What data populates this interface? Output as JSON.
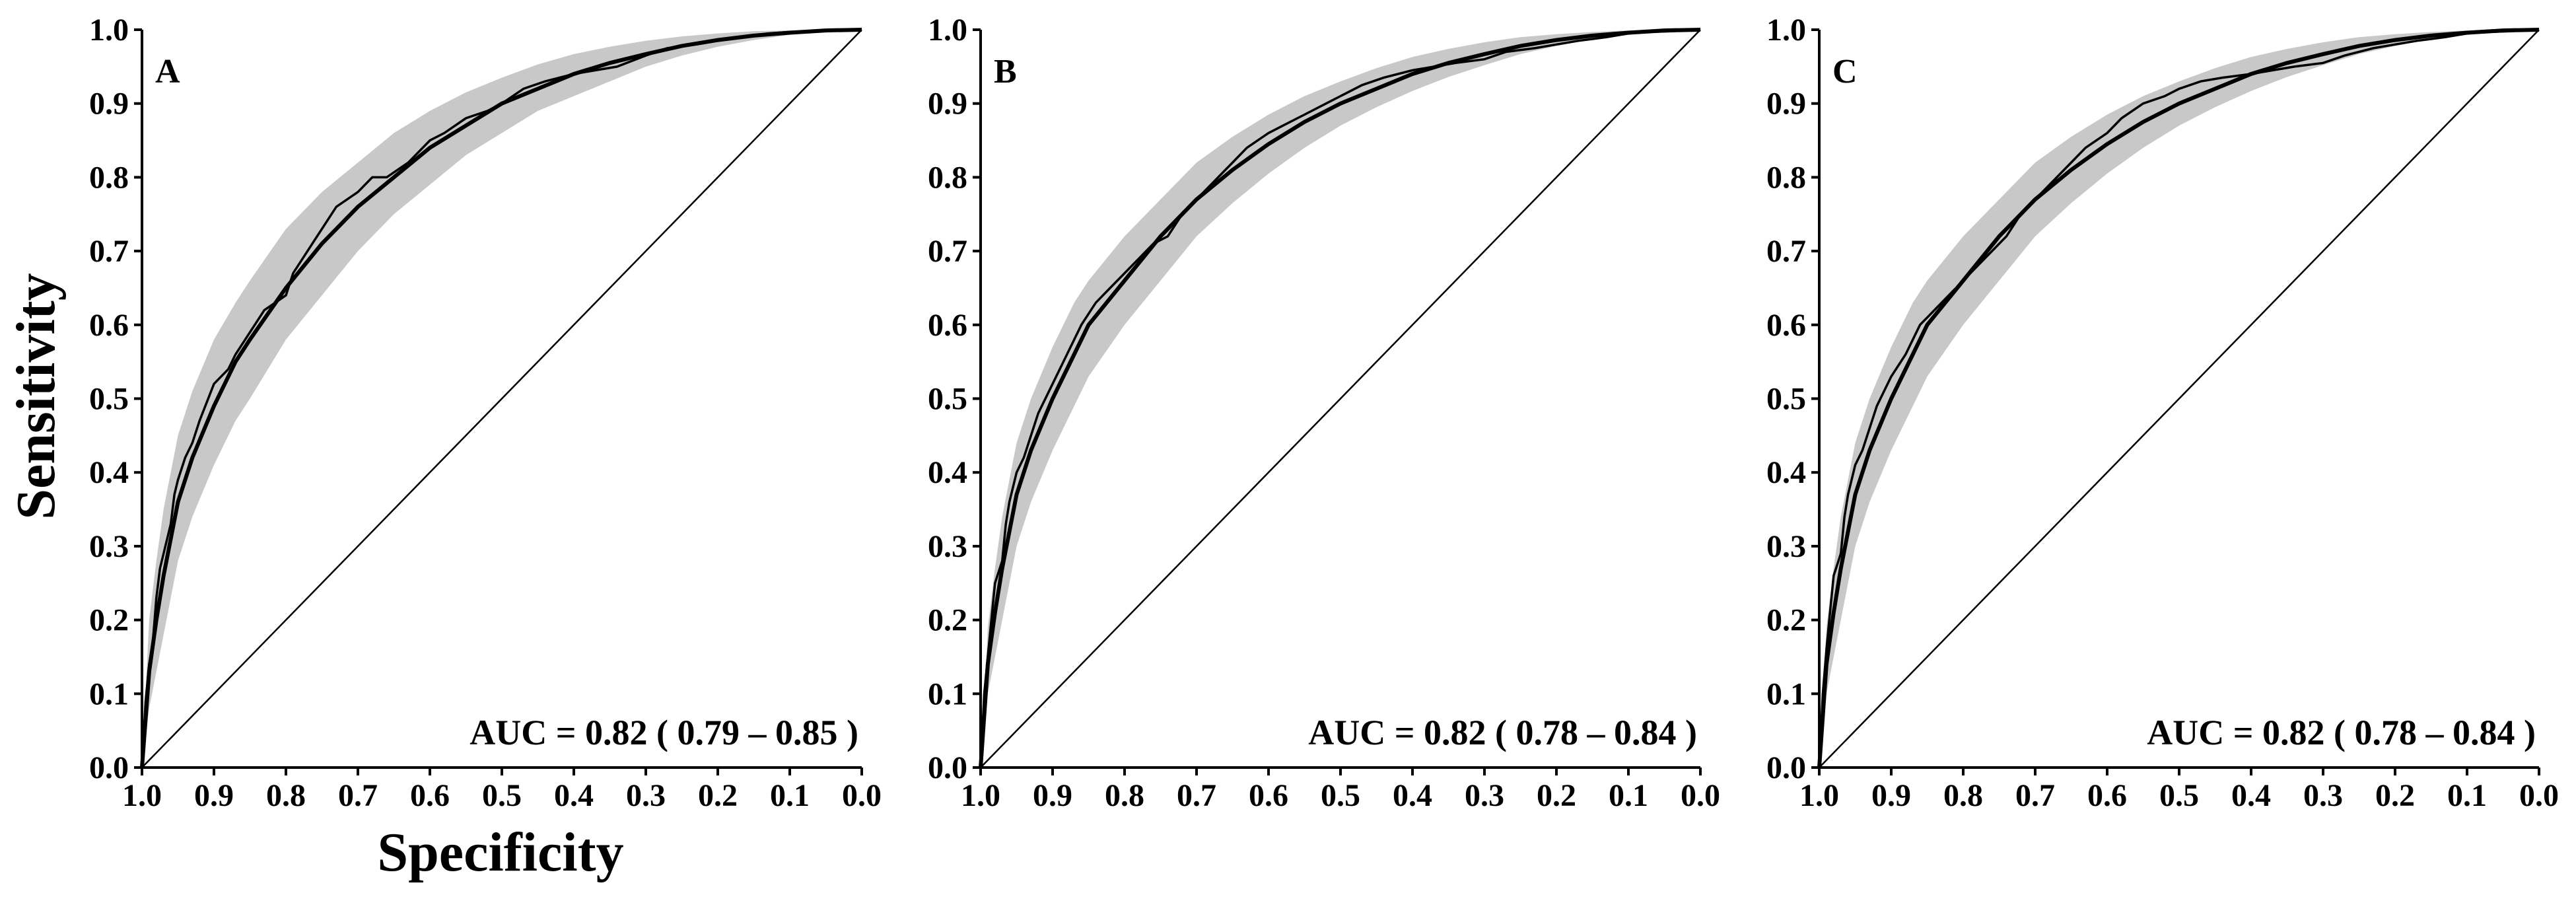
{
  "chart_data": [
    {
      "type": "line",
      "panel_label": "A",
      "xlabel": "Specificity",
      "ylabel": "Sensitivity",
      "xlim": [
        1.0,
        0.0
      ],
      "ylim": [
        0.0,
        1.0
      ],
      "xticks": [
        "1.0",
        "0.9",
        "0.8",
        "0.7",
        "0.6",
        "0.5",
        "0.4",
        "0.3",
        "0.2",
        "0.1",
        "0.0"
      ],
      "yticks": [
        "0.0",
        "0.1",
        "0.2",
        "0.3",
        "0.4",
        "0.5",
        "0.6",
        "0.7",
        "0.8",
        "0.9",
        "1.0"
      ],
      "annotation": "AUC = 0.82 ( 0.79 – 0.85 )",
      "auc": 0.82,
      "grid": false,
      "series": [
        {
          "kind": "smoothed",
          "x": [
            1.0,
            0.99,
            0.98,
            0.97,
            0.96,
            0.95,
            0.93,
            0.9,
            0.87,
            0.85,
            0.8,
            0.75,
            0.7,
            0.65,
            0.6,
            0.55,
            0.5,
            0.45,
            0.4,
            0.35,
            0.3,
            0.25,
            0.2,
            0.15,
            0.1,
            0.05,
            0.0
          ],
          "y": [
            0.0,
            0.13,
            0.2,
            0.26,
            0.31,
            0.36,
            0.42,
            0.49,
            0.55,
            0.58,
            0.65,
            0.71,
            0.76,
            0.8,
            0.84,
            0.87,
            0.9,
            0.92,
            0.94,
            0.955,
            0.967,
            0.978,
            0.986,
            0.992,
            0.996,
            0.999,
            1.0
          ]
        },
        {
          "kind": "empirical",
          "x": [
            1.0,
            0.995,
            0.99,
            0.985,
            0.98,
            0.975,
            0.97,
            0.96,
            0.955,
            0.95,
            0.94,
            0.93,
            0.92,
            0.9,
            0.88,
            0.87,
            0.85,
            0.83,
            0.8,
            0.79,
            0.77,
            0.75,
            0.73,
            0.7,
            0.68,
            0.66,
            0.63,
            0.6,
            0.58,
            0.55,
            0.52,
            0.5,
            0.47,
            0.44,
            0.4,
            0.37,
            0.34,
            0.3,
            0.27,
            0.23,
            0.2,
            0.17,
            0.13,
            0.1,
            0.07,
            0.04,
            0.0
          ],
          "y": [
            0.0,
            0.09,
            0.14,
            0.17,
            0.23,
            0.27,
            0.29,
            0.33,
            0.37,
            0.39,
            0.42,
            0.44,
            0.47,
            0.52,
            0.54,
            0.56,
            0.59,
            0.62,
            0.64,
            0.67,
            0.7,
            0.73,
            0.76,
            0.78,
            0.8,
            0.8,
            0.82,
            0.85,
            0.86,
            0.88,
            0.89,
            0.9,
            0.92,
            0.93,
            0.94,
            0.945,
            0.95,
            0.965,
            0.975,
            0.98,
            0.985,
            0.99,
            0.995,
            0.997,
            0.998,
            1.0,
            1.0
          ]
        }
      ],
      "ci_band": {
        "x": [
          1.0,
          0.99,
          0.98,
          0.97,
          0.96,
          0.95,
          0.93,
          0.9,
          0.87,
          0.85,
          0.8,
          0.75,
          0.7,
          0.65,
          0.6,
          0.55,
          0.5,
          0.45,
          0.4,
          0.35,
          0.3,
          0.25,
          0.2,
          0.15,
          0.1,
          0.05,
          0.0
        ],
        "upper": [
          0.0,
          0.2,
          0.28,
          0.35,
          0.4,
          0.45,
          0.51,
          0.58,
          0.63,
          0.66,
          0.73,
          0.78,
          0.82,
          0.86,
          0.89,
          0.915,
          0.935,
          0.953,
          0.967,
          0.977,
          0.985,
          0.991,
          0.995,
          0.998,
          0.999,
          1.0,
          1.0
        ],
        "lower": [
          0.0,
          0.08,
          0.13,
          0.18,
          0.23,
          0.28,
          0.34,
          0.41,
          0.47,
          0.5,
          0.58,
          0.64,
          0.7,
          0.75,
          0.79,
          0.83,
          0.86,
          0.89,
          0.91,
          0.93,
          0.95,
          0.965,
          0.977,
          0.986,
          0.993,
          0.998,
          1.0
        ]
      }
    },
    {
      "type": "line",
      "panel_label": "B",
      "xlabel": "",
      "ylabel": "",
      "xlim": [
        1.0,
        0.0
      ],
      "ylim": [
        0.0,
        1.0
      ],
      "xticks": [
        "1.0",
        "0.9",
        "0.8",
        "0.7",
        "0.6",
        "0.5",
        "0.4",
        "0.3",
        "0.2",
        "0.1",
        "0.0"
      ],
      "yticks": [
        "0.0",
        "0.1",
        "0.2",
        "0.3",
        "0.4",
        "0.5",
        "0.6",
        "0.7",
        "0.8",
        "0.9",
        "1.0"
      ],
      "annotation": "AUC = 0.82 ( 0.78 – 0.84 )",
      "auc": 0.82,
      "grid": false,
      "series": [
        {
          "kind": "smoothed",
          "x": [
            1.0,
            0.99,
            0.98,
            0.97,
            0.96,
            0.95,
            0.93,
            0.9,
            0.87,
            0.85,
            0.8,
            0.75,
            0.7,
            0.65,
            0.6,
            0.55,
            0.5,
            0.45,
            0.4,
            0.35,
            0.3,
            0.25,
            0.2,
            0.15,
            0.1,
            0.05,
            0.0
          ],
          "y": [
            0.0,
            0.14,
            0.21,
            0.27,
            0.32,
            0.37,
            0.43,
            0.5,
            0.56,
            0.6,
            0.66,
            0.72,
            0.77,
            0.81,
            0.845,
            0.875,
            0.9,
            0.92,
            0.94,
            0.955,
            0.967,
            0.978,
            0.986,
            0.992,
            0.996,
            0.999,
            1.0
          ]
        },
        {
          "kind": "empirical",
          "x": [
            1.0,
            0.995,
            0.99,
            0.985,
            0.98,
            0.97,
            0.965,
            0.96,
            0.95,
            0.94,
            0.93,
            0.92,
            0.9,
            0.88,
            0.86,
            0.84,
            0.82,
            0.8,
            0.78,
            0.76,
            0.74,
            0.72,
            0.7,
            0.68,
            0.65,
            0.63,
            0.6,
            0.58,
            0.55,
            0.52,
            0.5,
            0.47,
            0.44,
            0.4,
            0.37,
            0.34,
            0.3,
            0.27,
            0.23,
            0.2,
            0.17,
            0.13,
            0.1,
            0.07,
            0.04,
            0.0
          ],
          "y": [
            0.0,
            0.1,
            0.15,
            0.2,
            0.25,
            0.28,
            0.33,
            0.36,
            0.4,
            0.42,
            0.45,
            0.48,
            0.52,
            0.56,
            0.6,
            0.63,
            0.65,
            0.67,
            0.69,
            0.71,
            0.72,
            0.75,
            0.77,
            0.79,
            0.82,
            0.84,
            0.86,
            0.87,
            0.885,
            0.9,
            0.91,
            0.925,
            0.935,
            0.945,
            0.95,
            0.955,
            0.96,
            0.97,
            0.975,
            0.98,
            0.985,
            0.99,
            0.995,
            0.997,
            0.998,
            1.0
          ]
        }
      ],
      "ci_band": {
        "x": [
          1.0,
          0.99,
          0.98,
          0.97,
          0.96,
          0.95,
          0.93,
          0.9,
          0.87,
          0.85,
          0.8,
          0.75,
          0.7,
          0.65,
          0.6,
          0.55,
          0.5,
          0.45,
          0.4,
          0.35,
          0.3,
          0.25,
          0.2,
          0.15,
          0.1,
          0.05,
          0.0
        ],
        "upper": [
          0.0,
          0.19,
          0.27,
          0.34,
          0.39,
          0.44,
          0.5,
          0.57,
          0.63,
          0.66,
          0.72,
          0.77,
          0.82,
          0.855,
          0.885,
          0.91,
          0.93,
          0.948,
          0.963,
          0.974,
          0.983,
          0.99,
          0.994,
          0.997,
          0.999,
          1.0,
          1.0
        ],
        "lower": [
          0.0,
          0.1,
          0.15,
          0.2,
          0.25,
          0.3,
          0.36,
          0.43,
          0.49,
          0.53,
          0.6,
          0.66,
          0.72,
          0.765,
          0.805,
          0.84,
          0.87,
          0.895,
          0.917,
          0.936,
          0.952,
          0.967,
          0.978,
          0.987,
          0.993,
          0.998,
          1.0
        ]
      }
    },
    {
      "type": "line",
      "panel_label": "C",
      "xlabel": "",
      "ylabel": "",
      "xlim": [
        1.0,
        0.0
      ],
      "ylim": [
        0.0,
        1.0
      ],
      "xticks": [
        "1.0",
        "0.9",
        "0.8",
        "0.7",
        "0.6",
        "0.5",
        "0.4",
        "0.3",
        "0.2",
        "0.1",
        "0.0"
      ],
      "yticks": [
        "0.0",
        "0.1",
        "0.2",
        "0.3",
        "0.4",
        "0.5",
        "0.6",
        "0.7",
        "0.8",
        "0.9",
        "1.0"
      ],
      "annotation": "AUC = 0.82 ( 0.78 – 0.84 )",
      "auc": 0.82,
      "grid": false,
      "series": [
        {
          "kind": "smoothed",
          "x": [
            1.0,
            0.99,
            0.98,
            0.97,
            0.96,
            0.95,
            0.93,
            0.9,
            0.87,
            0.85,
            0.8,
            0.75,
            0.7,
            0.65,
            0.6,
            0.55,
            0.5,
            0.45,
            0.4,
            0.35,
            0.3,
            0.25,
            0.2,
            0.15,
            0.1,
            0.05,
            0.0
          ],
          "y": [
            0.0,
            0.14,
            0.21,
            0.27,
            0.32,
            0.37,
            0.43,
            0.5,
            0.56,
            0.6,
            0.66,
            0.72,
            0.77,
            0.81,
            0.845,
            0.875,
            0.9,
            0.92,
            0.94,
            0.955,
            0.967,
            0.978,
            0.986,
            0.992,
            0.996,
            0.999,
            1.0
          ]
        },
        {
          "kind": "empirical",
          "x": [
            1.0,
            0.995,
            0.99,
            0.985,
            0.98,
            0.97,
            0.965,
            0.96,
            0.95,
            0.94,
            0.93,
            0.92,
            0.9,
            0.88,
            0.86,
            0.84,
            0.82,
            0.8,
            0.78,
            0.76,
            0.74,
            0.72,
            0.7,
            0.68,
            0.65,
            0.63,
            0.6,
            0.58,
            0.55,
            0.52,
            0.5,
            0.47,
            0.44,
            0.4,
            0.37,
            0.34,
            0.3,
            0.27,
            0.23,
            0.2,
            0.17,
            0.13,
            0.1,
            0.07,
            0.04,
            0.0
          ],
          "y": [
            0.0,
            0.1,
            0.16,
            0.21,
            0.26,
            0.29,
            0.34,
            0.37,
            0.41,
            0.43,
            0.46,
            0.49,
            0.53,
            0.56,
            0.6,
            0.62,
            0.64,
            0.66,
            0.68,
            0.7,
            0.72,
            0.75,
            0.77,
            0.79,
            0.82,
            0.84,
            0.86,
            0.88,
            0.9,
            0.91,
            0.92,
            0.93,
            0.935,
            0.94,
            0.945,
            0.95,
            0.955,
            0.965,
            0.975,
            0.98,
            0.985,
            0.99,
            0.995,
            0.997,
            0.998,
            1.0
          ]
        }
      ],
      "ci_band": {
        "x": [
          1.0,
          0.99,
          0.98,
          0.97,
          0.96,
          0.95,
          0.93,
          0.9,
          0.87,
          0.85,
          0.8,
          0.75,
          0.7,
          0.65,
          0.6,
          0.55,
          0.5,
          0.45,
          0.4,
          0.35,
          0.3,
          0.25,
          0.2,
          0.15,
          0.1,
          0.05,
          0.0
        ],
        "upper": [
          0.0,
          0.19,
          0.27,
          0.34,
          0.39,
          0.44,
          0.5,
          0.57,
          0.63,
          0.66,
          0.72,
          0.77,
          0.82,
          0.855,
          0.885,
          0.91,
          0.93,
          0.948,
          0.963,
          0.974,
          0.983,
          0.99,
          0.994,
          0.997,
          0.999,
          1.0,
          1.0
        ],
        "lower": [
          0.0,
          0.1,
          0.15,
          0.2,
          0.25,
          0.3,
          0.36,
          0.43,
          0.49,
          0.53,
          0.6,
          0.66,
          0.72,
          0.765,
          0.805,
          0.84,
          0.87,
          0.895,
          0.917,
          0.936,
          0.952,
          0.967,
          0.978,
          0.987,
          0.993,
          0.998,
          1.0
        ]
      }
    }
  ]
}
